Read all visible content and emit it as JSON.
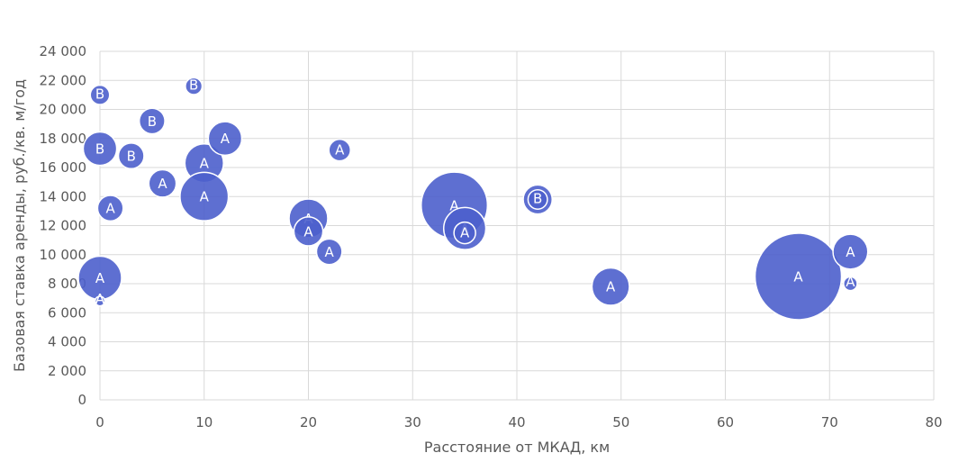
{
  "chart_data": {
    "type": "scatter",
    "subtype": "bubble",
    "xlabel": "Расстояние от МКАД, км",
    "ylabel": "Базовая ставка аренды, руб./кв. м/год",
    "xlim": [
      0,
      80
    ],
    "ylim": [
      0,
      24000
    ],
    "x_ticks": [
      0,
      10,
      20,
      30,
      40,
      50,
      60,
      70,
      80
    ],
    "x_tick_labels": [
      "0",
      "10",
      "20",
      "30",
      "40",
      "50",
      "60",
      "70",
      "80"
    ],
    "y_ticks": [
      0,
      2000,
      4000,
      6000,
      8000,
      10000,
      12000,
      14000,
      16000,
      18000,
      20000,
      22000,
      24000
    ],
    "y_tick_labels": [
      "0",
      "2 000",
      "4 000",
      "6 000",
      "8 000",
      "10 000",
      "12 000",
      "14 000",
      "16 000",
      "18 000",
      "20 000",
      "22 000",
      "24 000"
    ],
    "grid": true,
    "legend": "none",
    "bubble_color": "#4d5fcc",
    "points": [
      {
        "x": 0,
        "y": 21000,
        "size": 0.4,
        "label": "B"
      },
      {
        "x": 0,
        "y": 17300,
        "size": 1.2,
        "label": "B"
      },
      {
        "x": 0,
        "y": 8400,
        "size": 2.0,
        "label": "A"
      },
      {
        "x": 0,
        "y": 6800,
        "size": 0.1,
        "label": "A"
      },
      {
        "x": 1,
        "y": 13200,
        "size": 0.7,
        "label": "A"
      },
      {
        "x": 3,
        "y": 16800,
        "size": 0.7,
        "label": "B"
      },
      {
        "x": 5,
        "y": 19200,
        "size": 0.7,
        "label": "B"
      },
      {
        "x": 6,
        "y": 14900,
        "size": 0.8,
        "label": "A"
      },
      {
        "x": 9,
        "y": 21600,
        "size": 0.3,
        "label": "B"
      },
      {
        "x": 10,
        "y": 16300,
        "size": 1.6,
        "label": "A"
      },
      {
        "x": 10,
        "y": 14000,
        "size": 2.5,
        "label": "A"
      },
      {
        "x": 12,
        "y": 18000,
        "size": 1.2,
        "label": "A"
      },
      {
        "x": 20,
        "y": 12500,
        "size": 1.6,
        "label": "A"
      },
      {
        "x": 20,
        "y": 11600,
        "size": 0.9,
        "label": "A"
      },
      {
        "x": 22,
        "y": 10200,
        "size": 0.7,
        "label": "A"
      },
      {
        "x": 23,
        "y": 17200,
        "size": 0.5,
        "label": "A"
      },
      {
        "x": 34,
        "y": 13400,
        "size": 4.7,
        "label": "A"
      },
      {
        "x": 35,
        "y": 11800,
        "size": 1.9,
        "label": "A"
      },
      {
        "x": 35,
        "y": 11500,
        "size": 0.5,
        "label": "A"
      },
      {
        "x": 42,
        "y": 13800,
        "size": 0.9,
        "label": "B"
      },
      {
        "x": 42,
        "y": 13800,
        "size": 0.4,
        "label": "B"
      },
      {
        "x": 49,
        "y": 7800,
        "size": 1.5,
        "label": "A"
      },
      {
        "x": 67,
        "y": 8500,
        "size": 8.0,
        "label": "A"
      },
      {
        "x": 72,
        "y": 10200,
        "size": 1.3,
        "label": "A"
      },
      {
        "x": 72,
        "y": 8000,
        "size": 0.2,
        "label": "A"
      }
    ]
  }
}
